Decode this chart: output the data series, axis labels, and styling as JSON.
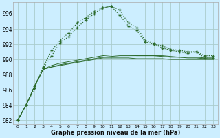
{
  "xlabel": "Graphe pression niveau de la mer (hPa)",
  "background_color": "#cceeff",
  "grid_color": "#aacccc",
  "line_color": "#2d6b2d",
  "ylim": [
    981.5,
    997.5
  ],
  "xlim": [
    -0.5,
    23.5
  ],
  "yticks": [
    982,
    984,
    986,
    988,
    990,
    992,
    994,
    996
  ],
  "xticks": [
    0,
    1,
    2,
    3,
    4,
    5,
    6,
    7,
    8,
    9,
    10,
    11,
    12,
    13,
    14,
    15,
    16,
    17,
    18,
    19,
    20,
    21,
    22,
    23
  ],
  "curve1_x": [
    0,
    1,
    2,
    3,
    4,
    5,
    6,
    7,
    8,
    9,
    10,
    11,
    12,
    13,
    14,
    15,
    16,
    17,
    18,
    19,
    20,
    21,
    22,
    23
  ],
  "curve1_y": [
    982,
    984,
    986.5,
    989.0,
    991.2,
    992.5,
    993.5,
    994.8,
    995.5,
    996.3,
    996.8,
    997.0,
    995.8,
    994.4,
    993.8,
    992.3,
    992.0,
    991.8,
    991.3,
    991.2,
    991.0,
    991.0,
    990.2,
    990.2
  ],
  "curve2_x": [
    0,
    1,
    2,
    3,
    4,
    5,
    6,
    7,
    8,
    9,
    10,
    11,
    12,
    13,
    14,
    15,
    16,
    17,
    18,
    19,
    20,
    21,
    22,
    23
  ],
  "curve2_y": [
    982,
    984,
    986.2,
    988.8,
    990.5,
    992.2,
    993.0,
    994.2,
    995.2,
    996.0,
    996.8,
    997.0,
    996.5,
    994.8,
    994.2,
    992.5,
    992.1,
    991.5,
    991.2,
    991.0,
    990.8,
    991.0,
    990.5,
    990.5
  ],
  "trend1_x": [
    0,
    1,
    2,
    3,
    4,
    5,
    6,
    7,
    8,
    9,
    10,
    11,
    12,
    13,
    14,
    15,
    16,
    17,
    18,
    19,
    20,
    21,
    22,
    23
  ],
  "trend1_y": [
    982,
    984,
    986.5,
    988.7,
    989.0,
    989.3,
    989.5,
    989.7,
    989.9,
    990.1,
    990.3,
    990.4,
    990.5,
    990.5,
    990.5,
    990.5,
    990.5,
    990.5,
    990.4,
    990.3,
    990.3,
    990.3,
    990.2,
    990.2
  ],
  "trend2_x": [
    0,
    1,
    2,
    3,
    4,
    5,
    6,
    7,
    8,
    9,
    10,
    11,
    12,
    13,
    14,
    15,
    16,
    17,
    18,
    19,
    20,
    21,
    22,
    23
  ],
  "trend2_y": [
    982,
    984,
    986.5,
    988.7,
    989.2,
    989.5,
    989.7,
    989.9,
    990.1,
    990.3,
    990.5,
    990.6,
    990.6,
    990.6,
    990.5,
    990.5,
    990.5,
    990.4,
    990.3,
    990.3,
    990.2,
    990.2,
    990.1,
    990.1
  ],
  "trend3_x": [
    0,
    1,
    2,
    3,
    4,
    5,
    6,
    7,
    8,
    9,
    10,
    11,
    12,
    13,
    14,
    15,
    16,
    17,
    18,
    19,
    20,
    21,
    22,
    23
  ],
  "trend3_y": [
    982,
    984,
    986.5,
    988.7,
    989.0,
    989.2,
    989.4,
    989.6,
    989.8,
    990.0,
    990.2,
    990.2,
    990.2,
    990.2,
    990.1,
    990.1,
    990.1,
    990.1,
    990.0,
    990.0,
    990.0,
    990.0,
    990.0,
    990.0
  ]
}
